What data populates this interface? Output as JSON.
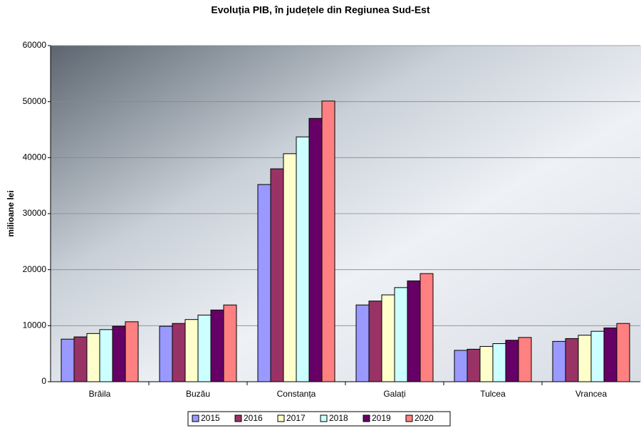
{
  "chart_data": {
    "type": "bar",
    "title": "Evoluția PIB, în județele din Regiunea Sud-Est",
    "y_label": "milioane lei",
    "categories": [
      "Brăila",
      "Buzău",
      "Constanța",
      "Galați",
      "Tulcea",
      "Vrancea"
    ],
    "series": [
      {
        "name": "2015",
        "color": "#9999ff",
        "values": [
          7600,
          9900,
          35200,
          13700,
          5600,
          7200
        ]
      },
      {
        "name": "2016",
        "color": "#993366",
        "values": [
          8000,
          10400,
          38000,
          14400,
          5800,
          7700
        ]
      },
      {
        "name": "2017",
        "color": "#ffffcc",
        "values": [
          8600,
          11100,
          40700,
          15500,
          6300,
          8300
        ]
      },
      {
        "name": "2018",
        "color": "#ccffff",
        "values": [
          9300,
          11900,
          43700,
          16800,
          6800,
          9000
        ]
      },
      {
        "name": "2019",
        "color": "#660066",
        "values": [
          9900,
          12800,
          47000,
          18000,
          7400,
          9600
        ]
      },
      {
        "name": "2020",
        "color": "#ff8080",
        "values": [
          10700,
          13700,
          50100,
          19300,
          7900,
          10400
        ]
      }
    ],
    "ylim": [
      0,
      60000
    ],
    "yticks": [
      0,
      10000,
      20000,
      30000,
      40000,
      50000,
      60000
    ],
    "grid": true
  }
}
